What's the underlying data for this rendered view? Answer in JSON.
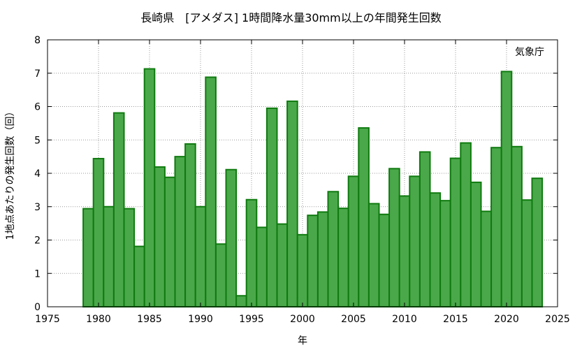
{
  "chart_data": {
    "type": "bar",
    "title": "長崎県　[アメダス] 1時間降水量30mm以上の年間発生回数",
    "xlabel": "年",
    "ylabel": "1地点あたりの発生回数（回）",
    "annotation": "気象庁",
    "xlim": [
      1975,
      2025
    ],
    "ylim": [
      0,
      8
    ],
    "xticks": [
      1975,
      1980,
      1985,
      1990,
      1995,
      2000,
      2005,
      2010,
      2015,
      2020,
      2025
    ],
    "yticks": [
      0,
      1,
      2,
      3,
      4,
      5,
      6,
      7,
      8
    ],
    "grid": true,
    "bar_color": "#4aa84a",
    "bar_edge_color": "#0f7a0f",
    "categories": [
      1979,
      1980,
      1981,
      1982,
      1983,
      1984,
      1985,
      1986,
      1987,
      1988,
      1989,
      1990,
      1991,
      1992,
      1993,
      1994,
      1995,
      1996,
      1997,
      1998,
      1999,
      2000,
      2001,
      2002,
      2003,
      2004,
      2005,
      2006,
      2007,
      2008,
      2009,
      2010,
      2011,
      2012,
      2013,
      2014,
      2015,
      2016,
      2017,
      2018,
      2019,
      2020,
      2021,
      2022,
      2023
    ],
    "values": [
      2.94,
      4.44,
      3.0,
      5.81,
      2.94,
      1.81,
      7.13,
      4.19,
      3.88,
      4.5,
      4.88,
      3.0,
      6.88,
      1.88,
      4.11,
      0.33,
      3.21,
      2.38,
      5.95,
      2.48,
      6.16,
      2.16,
      2.74,
      2.84,
      3.45,
      2.95,
      3.91,
      5.36,
      3.09,
      2.77,
      4.14,
      3.32,
      3.91,
      4.64,
      3.41,
      3.18,
      4.45,
      4.91,
      3.73,
      2.86,
      4.77,
      7.05,
      4.8,
      3.2,
      3.85
    ]
  }
}
